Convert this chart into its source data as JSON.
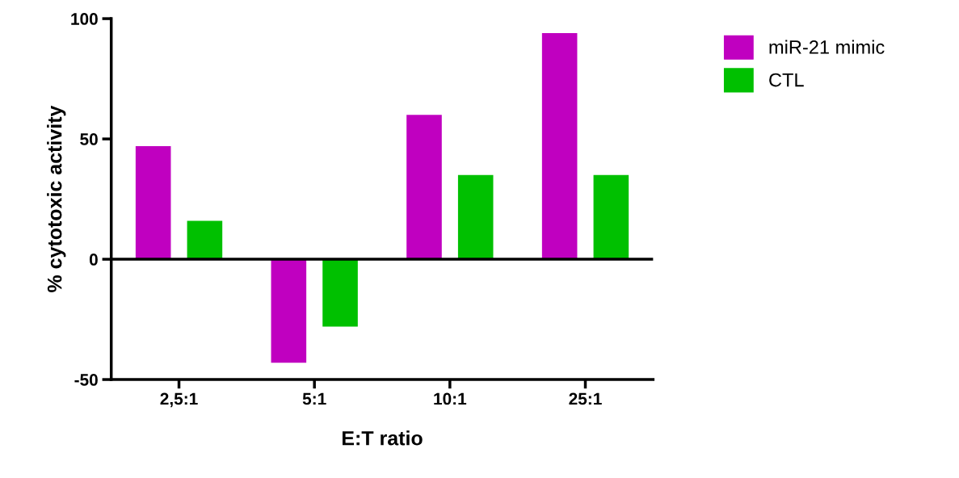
{
  "chart_data": {
    "type": "bar",
    "xlabel": "E:T ratio",
    "ylabel": "% cytotoxic activity",
    "categories": [
      "2,5:1",
      "5:1",
      "10:1",
      "25:1"
    ],
    "series": [
      {
        "name": "miR-21 mimic",
        "color": "#c000c0",
        "values": [
          47,
          -43,
          60,
          94
        ]
      },
      {
        "name": "CTL",
        "color": "#00c000",
        "values": [
          16,
          -28,
          35,
          35
        ]
      }
    ],
    "ylim": [
      -50,
      100
    ],
    "yticks": [
      -50,
      0,
      50,
      100
    ],
    "ref_lines": [
      {
        "axis": "y",
        "value": 0,
        "color": "#000000"
      }
    ],
    "grid": false,
    "legend": "top right"
  }
}
